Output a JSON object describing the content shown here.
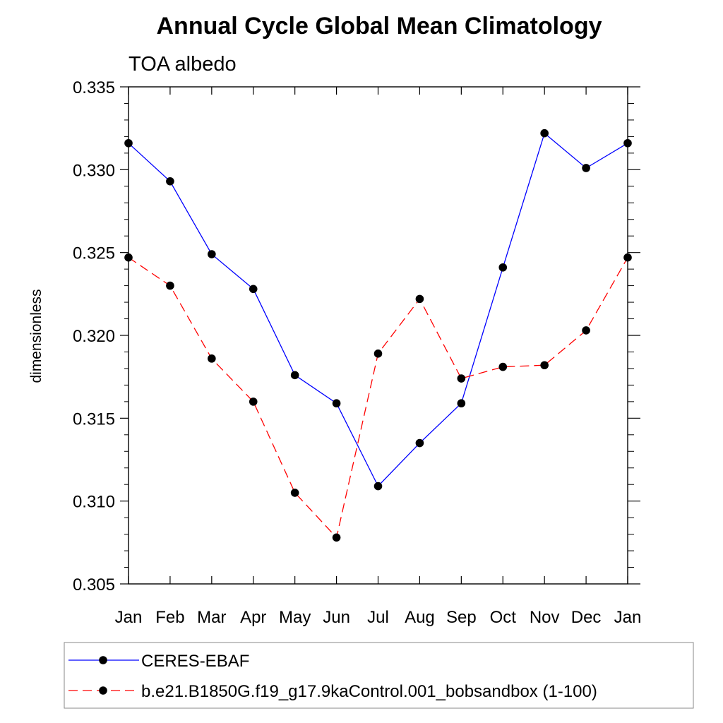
{
  "chart_data": {
    "type": "line",
    "title": "Annual Cycle Global Mean Climatology",
    "subtitle": "TOA albedo",
    "xlabel": "",
    "ylabel": "dimensionless",
    "categories": [
      "Jan",
      "Feb",
      "Mar",
      "Apr",
      "May",
      "Jun",
      "Jul",
      "Aug",
      "Sep",
      "Oct",
      "Nov",
      "Dec",
      "Jan"
    ],
    "ylim": [
      0.305,
      0.335
    ],
    "yticks": [
      "0.305",
      "0.310",
      "0.315",
      "0.320",
      "0.325",
      "0.330",
      "0.335"
    ],
    "legend_position": "bottom",
    "series": [
      {
        "name": "CERES-EBAF",
        "color": "#0000ff",
        "dash": "solid",
        "marker": "circle",
        "values": [
          0.3316,
          0.3293,
          0.3249,
          0.3228,
          0.3176,
          0.3159,
          0.3109,
          0.3135,
          0.3159,
          0.3241,
          0.3322,
          0.3301,
          0.3316
        ]
      },
      {
        "name": "b.e21.B1850G.f19_g17.9kaControl.001_bobsandbox (1-100)",
        "color": "#ff0000",
        "dash": "dashed",
        "marker": "circle",
        "values": [
          0.3247,
          0.323,
          0.3186,
          0.316,
          0.3105,
          0.3078,
          0.3189,
          0.3222,
          0.3174,
          0.3181,
          0.3182,
          0.3203,
          0.3247
        ]
      }
    ]
  }
}
